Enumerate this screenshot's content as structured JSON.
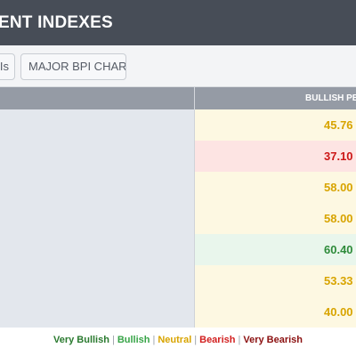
{
  "header": {
    "title": "ENT INDEXES"
  },
  "toolbar": {
    "partial_button_label": "Is",
    "major_chart_label": "MAJOR BPI CHART"
  },
  "table": {
    "column_header": "BULLISH PE",
    "rows": [
      {
        "value": "45.76",
        "status": "neutral"
      },
      {
        "value": "37.10",
        "status": "bearish"
      },
      {
        "value": "58.00",
        "status": "neutral"
      },
      {
        "value": "58.00",
        "status": "neutral"
      },
      {
        "value": "60.40",
        "status": "bullish"
      },
      {
        "value": "53.33",
        "status": "neutral"
      },
      {
        "value": "40.00",
        "status": "neutral"
      }
    ]
  },
  "legend": {
    "very_bullish": "Very Bullish",
    "bullish": "Bullish",
    "neutral": "Neutral",
    "bearish": "Bearish",
    "very_bearish": "Very Bearish",
    "separator": "|"
  },
  "colors": {
    "header_bg": "#474d57",
    "neutral": "#d8a400",
    "bearish": "#cc1717",
    "bullish": "#2e8b3a"
  }
}
